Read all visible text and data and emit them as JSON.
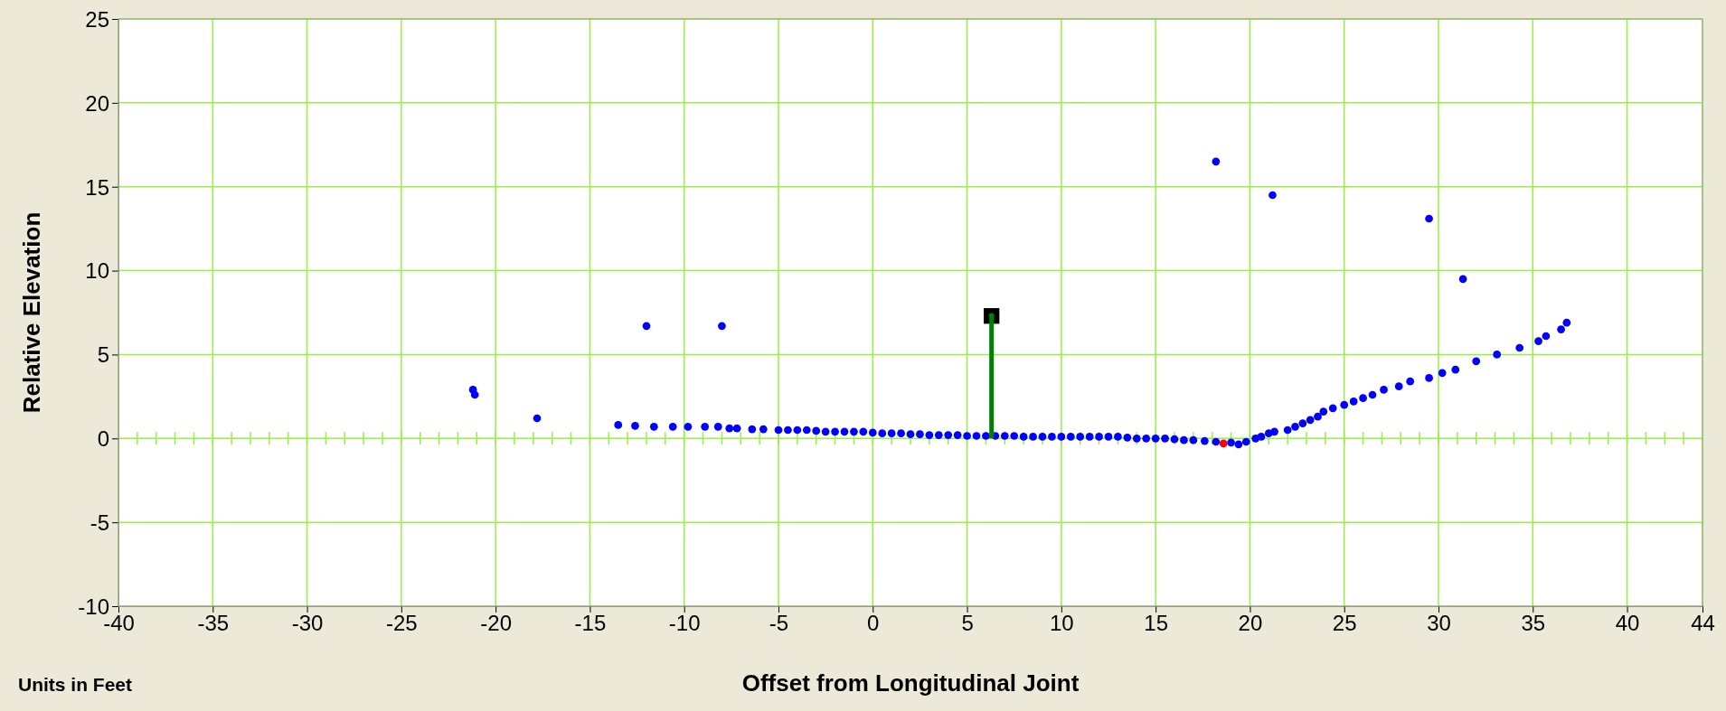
{
  "chart_data": {
    "type": "scatter",
    "xlabel": "Offset from Longitudinal Joint",
    "ylabel": "Relative Elevation",
    "annotations": [
      "Units in Feet"
    ],
    "xlim": [
      -40,
      44
    ],
    "xticks": [
      -40,
      -35,
      -30,
      -25,
      -20,
      -15,
      -10,
      -5,
      0,
      5,
      10,
      15,
      20,
      25,
      30,
      35,
      40,
      44
    ],
    "ylim": [
      -10,
      25
    ],
    "yticks": [
      -10,
      -5,
      0,
      5,
      10,
      15,
      20,
      25
    ],
    "grid": true,
    "marker": "circle",
    "series": [
      {
        "color": "#0000ff",
        "x": [
          -21.2,
          -21.1,
          -17.8,
          -12,
          -8,
          18.2,
          21.2,
          29.5,
          31.3,
          -13.5,
          -12.6,
          -11.6,
          -10.6,
          -9.8,
          -8.9,
          -8.2,
          -7.6,
          -7.2,
          -6.4,
          -5.8,
          -5,
          -4.5,
          -4,
          -3.5,
          -3,
          -2.5,
          -2,
          -1.5,
          -1,
          -0.5,
          0,
          0.5,
          1,
          1.5,
          2,
          2.5,
          3,
          3.5,
          4,
          4.5,
          5,
          5.5,
          6,
          6.5,
          7,
          7.5,
          8,
          8.5,
          9,
          9.5,
          10,
          10.5,
          11,
          11.5,
          12,
          12.5,
          13,
          13.5,
          14,
          14.5,
          15,
          15.5,
          16,
          16.5,
          17,
          17.6,
          18.2,
          19,
          19.4,
          19.8,
          20.3,
          20.6,
          21,
          21.3,
          22,
          22.4,
          22.8,
          23.2,
          23.6,
          23.9,
          24.4,
          25,
          25.5,
          26,
          26.5,
          27.1,
          27.9,
          28.5,
          29.5,
          30.2,
          30.9,
          32,
          33.1,
          34.3,
          35.3,
          35.7,
          36.5,
          36.8
        ],
        "values": [
          2.9,
          2.6,
          1.2,
          6.7,
          6.7,
          16.5,
          14.5,
          13.1,
          9.5,
          0.8,
          0.75,
          0.7,
          0.7,
          0.7,
          0.7,
          0.7,
          0.6,
          0.6,
          0.55,
          0.55,
          0.5,
          0.5,
          0.5,
          0.5,
          0.45,
          0.4,
          0.4,
          0.4,
          0.4,
          0.4,
          0.35,
          0.3,
          0.3,
          0.3,
          0.25,
          0.25,
          0.2,
          0.2,
          0.2,
          0.2,
          0.15,
          0.15,
          0.15,
          0.15,
          0.15,
          0.15,
          0.1,
          0.1,
          0.1,
          0.1,
          0.1,
          0.1,
          0.1,
          0.1,
          0.1,
          0.1,
          0.1,
          0.05,
          0,
          0,
          0,
          0,
          -0.05,
          -0.1,
          -0.1,
          -0.15,
          -0.2,
          -0.25,
          -0.35,
          -0.2,
          0,
          0.1,
          0.3,
          0.4,
          0.5,
          0.7,
          0.9,
          1.1,
          1.3,
          1.6,
          1.8,
          2,
          2.2,
          2.4,
          2.6,
          2.9,
          3.1,
          3.4,
          3.6,
          3.9,
          4.1,
          4.6,
          5,
          5.4,
          5.8,
          6.1,
          6.5,
          6.9
        ]
      },
      {
        "type": "scatter",
        "color": "#ff0000",
        "x": [
          18.6
        ],
        "values": [
          -0.3
        ]
      },
      {
        "type": "scatter",
        "color": "#000000",
        "marker": "square",
        "x": [
          6.3
        ],
        "values": [
          7.3
        ]
      },
      {
        "type": "lollipop",
        "color": "#008000",
        "x": [
          6.3
        ],
        "values": [
          7.3
        ]
      }
    ]
  }
}
